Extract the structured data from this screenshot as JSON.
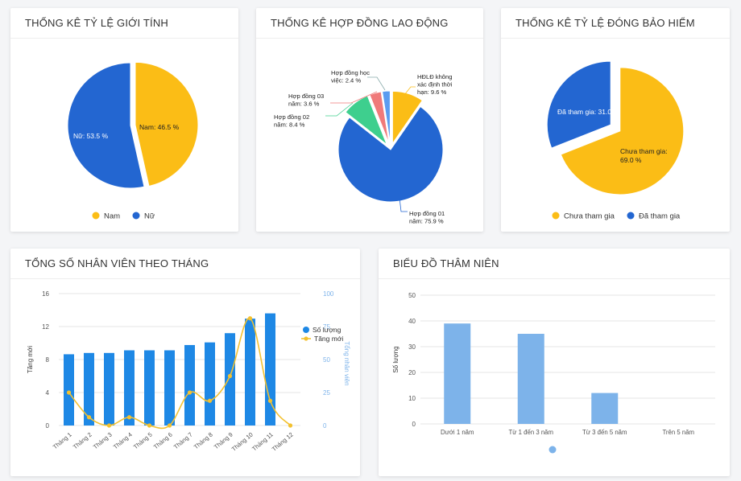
{
  "cards": {
    "gender": {
      "title": "THỐNG KÊ TỶ LỆ GIỚI TÍNH"
    },
    "contract": {
      "title": "THỐNG KÊ HỢP ĐỒNG LAO ĐỘNG"
    },
    "insurance": {
      "title": "THỐNG KÊ TỶ LỆ ĐÓNG BẢO HIỂM"
    },
    "monthly": {
      "title": "TỔNG SỐ NHÂN VIÊN THEO THÁNG"
    },
    "seniority": {
      "title": "BIỂU ĐỒ THÂM NIÊN"
    }
  },
  "colors": {
    "blue": "#2366d1",
    "yellow": "#fbbd16",
    "green": "#3ecf8e",
    "pink": "#f07a7a",
    "lightblue": "#5b9cf0",
    "bar": "#1e88e5",
    "line": "#f3c130",
    "bar2": "#7db3ea"
  },
  "chart_data": [
    {
      "type": "pie",
      "title": "THỐNG KÊ TỶ LỆ GIỚI TÍNH",
      "slices": [
        {
          "label": "Nam",
          "value": 46.5,
          "text": "Nam: 46.5 %"
        },
        {
          "label": "Nữ",
          "value": 53.5,
          "text": "Nữ: 53.5 %"
        }
      ],
      "legend": [
        "Nam",
        "Nữ"
      ]
    },
    {
      "type": "pie",
      "title": "THỐNG KÊ HỢP ĐỒNG LAO ĐỘNG",
      "slices": [
        {
          "label": "HĐLĐ không xác định thời hạn",
          "value": 9.6,
          "lines": [
            "HĐLĐ không",
            "xác định thời",
            "hạn: 9.6 %"
          ]
        },
        {
          "label": "Hợp đồng 01 năm",
          "value": 75.9,
          "lines": [
            "Hợp đồng 01",
            "năm: 75.9 %"
          ]
        },
        {
          "label": "Hợp đồng 02 năm",
          "value": 8.4,
          "lines": [
            "Hợp đồng 02",
            "năm: 8.4 %"
          ]
        },
        {
          "label": "Hợp đồng 03 năm",
          "value": 3.6,
          "lines": [
            "Hợp đồng 03",
            "năm: 3.6 %"
          ]
        },
        {
          "label": "Hợp đồng học việc",
          "value": 2.4,
          "lines": [
            "Hợp đồng học",
            "việc: 2.4 %"
          ]
        }
      ]
    },
    {
      "type": "pie",
      "title": "THỐNG KÊ TỶ LỆ ĐÓNG BẢO HIỂM",
      "slices": [
        {
          "label": "Chưa tham gia",
          "value": 69.0,
          "lines": [
            "Chưa tham gia:",
            "69.0 %"
          ]
        },
        {
          "label": "Đã tham gia",
          "value": 31.0,
          "lines": [
            "Đã tham gia: 31.0 %"
          ]
        }
      ],
      "legend": [
        "Chưa tham gia",
        "Đã tham gia"
      ]
    },
    {
      "type": "bar",
      "title": "TỔNG SỐ NHÂN VIÊN THEO THÁNG",
      "categories": [
        "Tháng 1",
        "Tháng 2",
        "Tháng 3",
        "Tháng 4",
        "Tháng 5",
        "Tháng 6",
        "Tháng 7",
        "Tháng 8",
        "Tháng 9",
        "Tháng 10",
        "Tháng 11",
        "Tháng 12"
      ],
      "series": [
        {
          "name": "Số lượng",
          "axis": "right",
          "values": [
            54,
            55,
            55,
            57,
            57,
            57,
            61,
            63,
            70,
            81,
            85,
            0
          ]
        },
        {
          "name": "Tăng mới",
          "type": "line",
          "axis": "left",
          "values": [
            4,
            1,
            0,
            1,
            0,
            0,
            4,
            3,
            6,
            13,
            3,
            0
          ]
        }
      ],
      "ylabel_left": "Tăng mới",
      "ylabel_right": "Tổng nhân viên",
      "ylim_left": [
        0,
        16
      ],
      "yticks_left": [
        "0",
        "4",
        "8",
        "12",
        "16"
      ],
      "ylim_right": [
        0,
        100
      ],
      "yticks_right": [
        "0",
        "25",
        "50",
        "75",
        "100"
      ],
      "legend_position": "right"
    },
    {
      "type": "bar",
      "title": "BIỂU ĐỒ THÂM NIÊN",
      "categories": [
        "Dưới 1 năm",
        "Từ 1 đến 3 năm",
        "Từ 3 đến 5 năm",
        "Trên 5 năm"
      ],
      "values": [
        39,
        35,
        12,
        0
      ],
      "ylabel": "Số lượng",
      "ylim": [
        0,
        50
      ],
      "yticks": [
        "0",
        "10",
        "20",
        "30",
        "40",
        "50"
      ]
    }
  ]
}
